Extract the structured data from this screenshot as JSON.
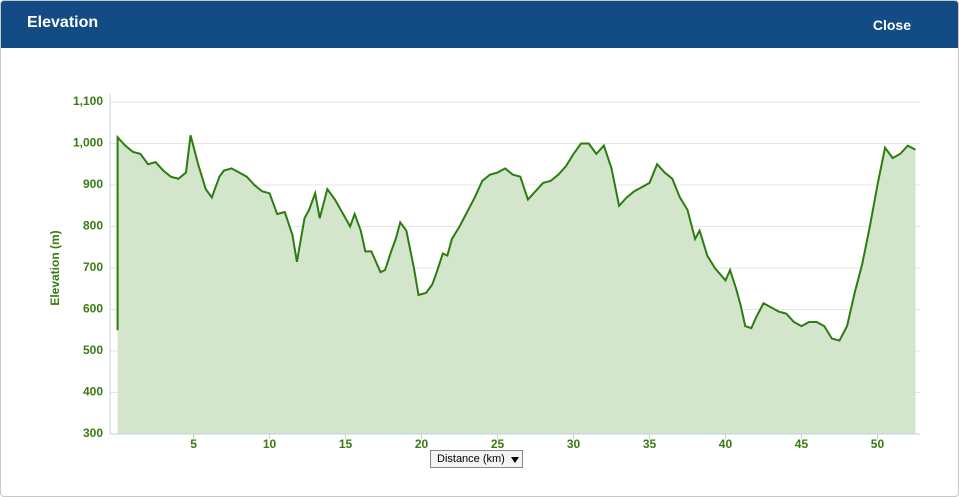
{
  "dialog": {
    "title": "Elevation",
    "close": "Close"
  },
  "chart_data": {
    "type": "area",
    "ylabel": "Elevation (m)",
    "xlabel": "Distance (km)",
    "xlim": [
      -0.5,
      52.8
    ],
    "ylim": [
      300,
      1100
    ],
    "xticks": [
      5,
      10,
      15,
      20,
      25,
      30,
      35,
      40,
      45,
      50
    ],
    "yticks": [
      300,
      400,
      500,
      600,
      700,
      800,
      900,
      {
        "value": 1000,
        "label": "1,000"
      },
      {
        "value": 1100,
        "label": "1,100"
      }
    ],
    "grid": true,
    "color": "#2b7d10",
    "fill": "#d3e6cc",
    "x": [
      0,
      0,
      0.5,
      1,
      1.5,
      2,
      2.5,
      3,
      3.5,
      4,
      4.5,
      4.8,
      5.3,
      5.8,
      6.2,
      6.7,
      7,
      7.5,
      8,
      8.5,
      9,
      9.5,
      10,
      10.5,
      11,
      11.5,
      11.8,
      12.3,
      12.6,
      13,
      13.3,
      13.8,
      14.3,
      15,
      15.3,
      15.6,
      16,
      16.3,
      16.7,
      17.3,
      17.6,
      18,
      18.3,
      18.6,
      19,
      19.5,
      19.8,
      20.3,
      20.7,
      21,
      21.4,
      21.7,
      22,
      22.5,
      23,
      23.5,
      24,
      24.5,
      25,
      25.5,
      26,
      26.5,
      27,
      27.5,
      28,
      28.5,
      29,
      29.5,
      30,
      30.5,
      31,
      31.5,
      32,
      32.5,
      33,
      33.5,
      34,
      34.5,
      35,
      35.5,
      36,
      36.5,
      37,
      37.5,
      38,
      38.3,
      38.8,
      39.3,
      40,
      40.3,
      40.7,
      41,
      41.3,
      41.7,
      42,
      42.5,
      43,
      43.5,
      44,
      44.5,
      45,
      45.5,
      46,
      46.5,
      47,
      47.5,
      48,
      48.5,
      49,
      49.5,
      50,
      50.5,
      51,
      51.5,
      52,
      52.5
    ],
    "values": [
      550,
      1015,
      995,
      980,
      975,
      950,
      955,
      935,
      920,
      915,
      930,
      1020,
      950,
      890,
      870,
      920,
      935,
      940,
      930,
      920,
      900,
      885,
      880,
      830,
      835,
      780,
      715,
      820,
      840,
      880,
      820,
      890,
      865,
      820,
      800,
      830,
      790,
      740,
      740,
      690,
      695,
      740,
      770,
      810,
      790,
      700,
      635,
      640,
      660,
      690,
      735,
      730,
      770,
      800,
      835,
      870,
      910,
      925,
      930,
      940,
      925,
      920,
      865,
      885,
      905,
      910,
      925,
      945,
      975,
      1000,
      1000,
      975,
      995,
      940,
      850,
      870,
      885,
      895,
      905,
      950,
      930,
      915,
      870,
      840,
      770,
      790,
      730,
      700,
      670,
      695,
      650,
      610,
      560,
      555,
      580,
      615,
      605,
      595,
      590,
      570,
      560,
      570,
      570,
      560,
      530,
      525,
      560,
      640,
      710,
      800,
      900,
      990,
      965,
      975,
      995,
      985
    ]
  }
}
